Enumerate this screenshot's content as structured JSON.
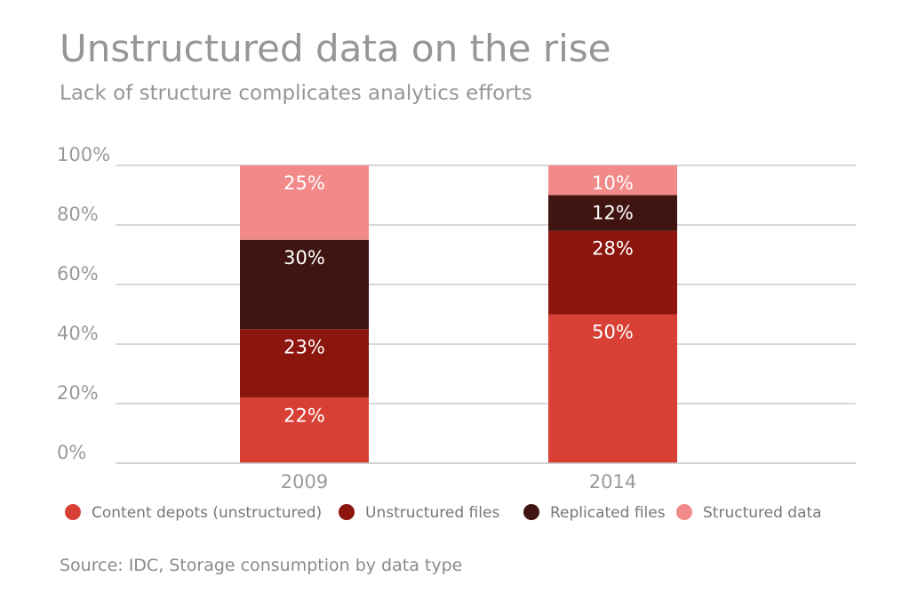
{
  "title": "Unstructured data on the rise",
  "subtitle": "Lack of structure complicates analytics efforts",
  "source": "Source: IDC, Storage consumption by data type",
  "chart_data": {
    "type": "bar",
    "stacked": true,
    "categories": [
      "2009",
      "2014"
    ],
    "series": [
      {
        "name": "Content depots (unstructured)",
        "values": [
          22,
          50
        ],
        "labels": [
          "22%",
          "50%"
        ],
        "color": "#d84035"
      },
      {
        "name": "Unstructured files",
        "values": [
          23,
          28
        ],
        "labels": [
          "23%",
          "28%"
        ],
        "color": "#8c150e"
      },
      {
        "name": "Replicated files",
        "values": [
          30,
          12
        ],
        "labels": [
          "30%",
          "12%"
        ],
        "color": "#401411"
      },
      {
        "name": "Structured data",
        "values": [
          25,
          10
        ],
        "labels": [
          "25%",
          "10%"
        ],
        "color": "#f28a8a"
      }
    ],
    "yticks": [
      "0%",
      "20%",
      "40%",
      "60%",
      "80%",
      "100%"
    ],
    "ylim": [
      0,
      100
    ],
    "grid": true,
    "legend": "bottom"
  }
}
